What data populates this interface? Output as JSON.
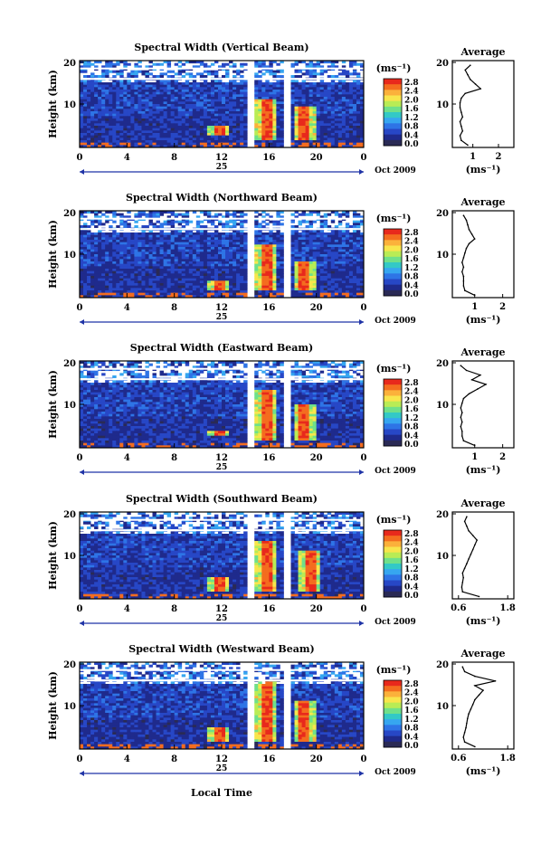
{
  "xlabel": "Local Time",
  "date_label": "Oct 2009",
  "day_label": "25",
  "x_ticks": [
    "0",
    "4",
    "8",
    "12",
    "16",
    "20",
    "0"
  ],
  "ylabel": "Height (km)",
  "y_ticks": [
    "20",
    "10"
  ],
  "colorbar": {
    "unit": "(ms⁻¹)",
    "ticks": [
      "2.8",
      "2.4",
      "2.0",
      "1.6",
      "1.2",
      "0.8",
      "0.4",
      "0.0"
    ],
    "colors": [
      "#e8291c",
      "#f46d1f",
      "#fbb13b",
      "#f8e54c",
      "#b9ec55",
      "#6fe08a",
      "#33c9c6",
      "#36a6f0",
      "#2e74e6",
      "#2747c6",
      "#1f2a8c",
      "#2a2a55"
    ]
  },
  "average": {
    "title": "Average",
    "xlabel": "(ms⁻¹)"
  },
  "colors": {
    "line": "#1f33a6",
    "white": "#ffffff"
  },
  "chart_data": [
    {
      "type": "heatmap",
      "title": "Spectral Width (Vertical Beam)",
      "x_ticks": [
        "0",
        "4",
        "8",
        "12",
        "16",
        "20",
        "0"
      ],
      "y_ticks": [
        "20",
        "10"
      ],
      "gaps": [
        14.5,
        17.5
      ],
      "hotspots": [
        [
          15.8,
          3,
          12
        ],
        [
          19,
          3,
          10
        ],
        [
          11.8,
          4,
          6
        ]
      ],
      "average_profile": {
        "x_ticks": [
          "1",
          "2"
        ],
        "xlim": [
          0.2,
          2.6
        ],
        "heights": [
          2,
          3,
          4,
          5,
          6,
          7,
          8,
          9,
          10,
          11,
          12,
          13,
          14,
          15,
          16,
          17,
          18,
          19
        ],
        "values": [
          0.8,
          0.55,
          0.5,
          0.6,
          0.55,
          0.5,
          0.6,
          0.55,
          0.5,
          0.5,
          0.55,
          0.7,
          1.3,
          1.1,
          0.9,
          0.8,
          0.7,
          0.9
        ]
      }
    },
    {
      "type": "heatmap",
      "title": "Spectral Width (Northward Beam)",
      "x_ticks": [
        "0",
        "4",
        "8",
        "12",
        "16",
        "20",
        "0"
      ],
      "y_ticks": [
        "20",
        "10"
      ],
      "gaps": [
        14.5,
        17.5
      ],
      "hotspots": [
        [
          15.8,
          3,
          13
        ],
        [
          19,
          3,
          9
        ],
        [
          11.8,
          3,
          5
        ]
      ],
      "average_profile": {
        "x_ticks": [
          "1",
          "2"
        ],
        "xlim": [
          0.2,
          2.4
        ],
        "heights": [
          2,
          3,
          4,
          5,
          6,
          7,
          8,
          9,
          10,
          11,
          12,
          13,
          14,
          15,
          16,
          17,
          18,
          19
        ],
        "values": [
          1.0,
          0.65,
          0.6,
          0.6,
          0.6,
          0.55,
          0.6,
          0.55,
          0.6,
          0.65,
          0.7,
          0.8,
          1.0,
          0.9,
          0.8,
          0.75,
          0.7,
          0.6
        ]
      }
    },
    {
      "type": "heatmap",
      "title": "Spectral Width (Eastward Beam)",
      "x_ticks": [
        "0",
        "4",
        "8",
        "12",
        "16",
        "20",
        "0"
      ],
      "y_ticks": [
        "20",
        "10"
      ],
      "gaps": [
        14.5,
        17.5
      ],
      "hotspots": [
        [
          15.8,
          3,
          14
        ],
        [
          19,
          3,
          11
        ],
        [
          11.8,
          4,
          5
        ]
      ],
      "average_profile": {
        "x_ticks": [
          "1",
          "2"
        ],
        "xlim": [
          0.2,
          2.4
        ],
        "heights": [
          2,
          3,
          4,
          5,
          6,
          7,
          8,
          9,
          10,
          11,
          12,
          13,
          14,
          15,
          16,
          17,
          18,
          19
        ],
        "values": [
          1.0,
          0.6,
          0.55,
          0.55,
          0.5,
          0.55,
          0.5,
          0.55,
          0.5,
          0.55,
          0.6,
          0.8,
          1.1,
          1.4,
          0.9,
          1.2,
          0.7,
          0.5
        ]
      }
    },
    {
      "type": "heatmap",
      "title": "Spectral Width (Southward Beam)",
      "x_ticks": [
        "0",
        "4",
        "8",
        "12",
        "16",
        "20",
        "0"
      ],
      "y_ticks": [
        "20",
        "10"
      ],
      "gaps": [
        14.5,
        17.5
      ],
      "hotspots": [
        [
          15.8,
          3,
          14
        ],
        [
          19.5,
          3,
          12
        ],
        [
          11.8,
          3,
          6
        ]
      ],
      "average_profile": {
        "x_ticks": [
          "0.6",
          "1.8"
        ],
        "xlim": [
          0.45,
          1.95
        ],
        "heights": [
          2,
          3,
          4,
          5,
          6,
          7,
          8,
          9,
          10,
          11,
          12,
          13,
          14,
          15,
          16,
          17,
          18,
          19
        ],
        "values": [
          1.1,
          0.7,
          0.68,
          0.7,
          0.72,
          0.7,
          0.75,
          0.8,
          0.85,
          0.9,
          0.95,
          1.0,
          1.05,
          0.95,
          0.85,
          0.8,
          0.75,
          0.8
        ]
      }
    },
    {
      "type": "heatmap",
      "title": "Spectral Width (Westward Beam)",
      "x_ticks": [
        "0",
        "4",
        "8",
        "12",
        "16",
        "20",
        "0"
      ],
      "y_ticks": [
        "20",
        "10"
      ],
      "gaps": [
        14.5,
        17.5
      ],
      "hotspots": [
        [
          15.8,
          3,
          16
        ],
        [
          19,
          3,
          12
        ],
        [
          11.8,
          3,
          6
        ]
      ],
      "average_profile": {
        "x_ticks": [
          "0.6",
          "1.8"
        ],
        "xlim": [
          0.45,
          1.95
        ],
        "heights": [
          2,
          3,
          4,
          5,
          6,
          7,
          8,
          9,
          10,
          11,
          12,
          13,
          14,
          15,
          16,
          17,
          18,
          19
        ],
        "values": [
          1.0,
          0.75,
          0.72,
          0.75,
          0.78,
          0.8,
          0.82,
          0.85,
          0.9,
          0.95,
          1.0,
          1.1,
          1.2,
          1.0,
          1.5,
          1.0,
          0.75,
          0.7
        ]
      }
    }
  ]
}
